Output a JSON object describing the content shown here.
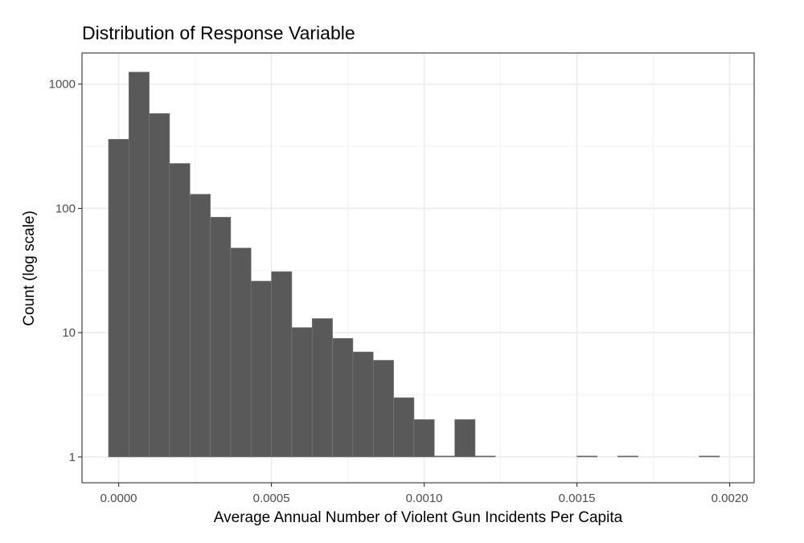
{
  "chart_data": {
    "type": "bar",
    "title": "Distribution of Response Variable",
    "xlabel": "Average Annual Number of Violent Gun Incidents Per Capita",
    "ylabel": "Count (log scale)",
    "y_scale": "log10",
    "xlim": [
      -0.00012,
      0.00208
    ],
    "ylim": [
      0.62,
      1780
    ],
    "x_ticks": [
      {
        "value": 0.0,
        "label": "0.0000"
      },
      {
        "value": 0.0005,
        "label": "0.0005"
      },
      {
        "value": 0.001,
        "label": "0.0010"
      },
      {
        "value": 0.0015,
        "label": "0.0015"
      },
      {
        "value": 0.002,
        "label": "0.0020"
      }
    ],
    "y_ticks": [
      {
        "value": 1,
        "label": "1"
      },
      {
        "value": 10,
        "label": "10"
      },
      {
        "value": 100,
        "label": "100"
      },
      {
        "value": 1000,
        "label": "1000"
      }
    ],
    "grid": true,
    "bar_color": "#595959",
    "bar_outline": "#7a7a7a",
    "bins": [
      {
        "x0": -3.33e-05,
        "x1": 3.33e-05,
        "count": 360
      },
      {
        "x0": 3.33e-05,
        "x1": 0.0001,
        "count": 1250
      },
      {
        "x0": 0.0001,
        "x1": 0.0001667,
        "count": 580
      },
      {
        "x0": 0.0001667,
        "x1": 0.0002333,
        "count": 230
      },
      {
        "x0": 0.0002333,
        "x1": 0.0003,
        "count": 130
      },
      {
        "x0": 0.0003,
        "x1": 0.0003667,
        "count": 85
      },
      {
        "x0": 0.0003667,
        "x1": 0.0004333,
        "count": 48
      },
      {
        "x0": 0.0004333,
        "x1": 0.0005,
        "count": 26
      },
      {
        "x0": 0.0005,
        "x1": 0.0005667,
        "count": 31
      },
      {
        "x0": 0.0005667,
        "x1": 0.0006333,
        "count": 11
      },
      {
        "x0": 0.0006333,
        "x1": 0.0007,
        "count": 13
      },
      {
        "x0": 0.0007,
        "x1": 0.0007667,
        "count": 9
      },
      {
        "x0": 0.0007667,
        "x1": 0.0008333,
        "count": 7
      },
      {
        "x0": 0.0008333,
        "x1": 0.0009,
        "count": 6
      },
      {
        "x0": 0.0009,
        "x1": 0.0009667,
        "count": 3
      },
      {
        "x0": 0.0009667,
        "x1": 0.0010333,
        "count": 2
      },
      {
        "x0": 0.0010333,
        "x1": 0.0011,
        "count": 1
      },
      {
        "x0": 0.0011,
        "x1": 0.0011667,
        "count": 2
      },
      {
        "x0": 0.0011667,
        "x1": 0.0012333,
        "count": 1
      },
      {
        "x0": 0.0015,
        "x1": 0.0015667,
        "count": 1
      },
      {
        "x0": 0.0016333,
        "x1": 0.0017,
        "count": 1
      },
      {
        "x0": 0.0019,
        "x1": 0.0019667,
        "count": 1
      }
    ]
  }
}
